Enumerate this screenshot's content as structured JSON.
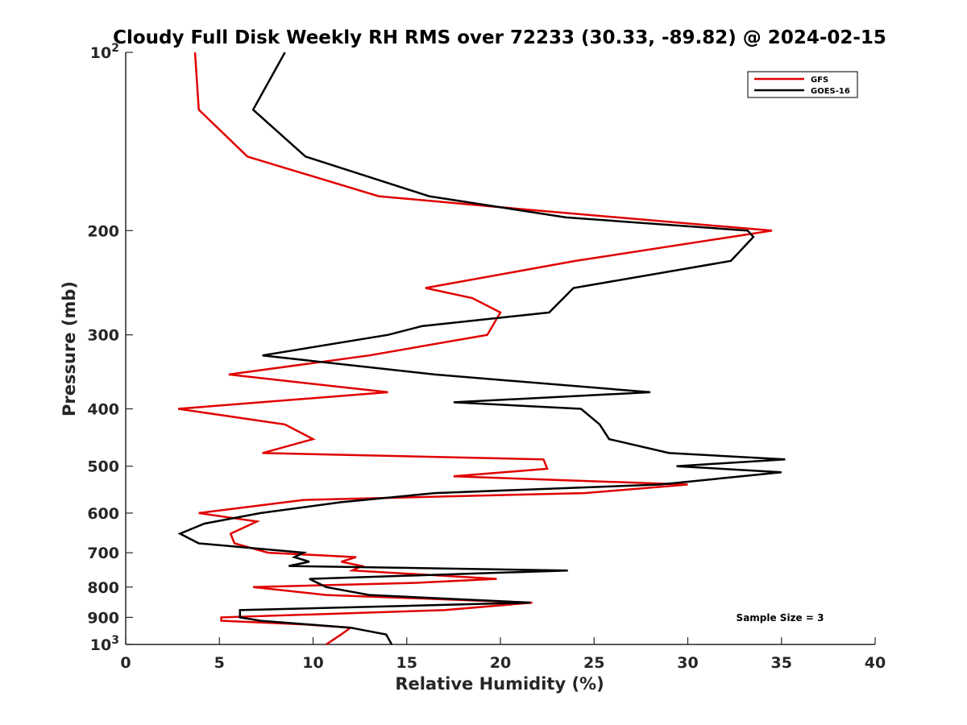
{
  "chart_data": {
    "type": "line",
    "title": "Cloudy Full Disk Weekly RH RMS over 72233 (30.33, -89.82) @ 2024-02-15",
    "xlabel": "Relative Humidity (%)",
    "ylabel": "Pressure (mb)",
    "xlim": [
      0,
      40
    ],
    "ylim": [
      100,
      1000
    ],
    "yscale": "log",
    "y_reversed": true,
    "xticks": [
      0,
      5,
      10,
      15,
      20,
      25,
      30,
      35,
      40
    ],
    "xtick_labels": [
      "0",
      "5",
      "10",
      "15",
      "20",
      "25",
      "30",
      "35",
      "40"
    ],
    "yticks": [
      100,
      200,
      300,
      400,
      500,
      600,
      700,
      800,
      900,
      1000
    ],
    "ytick_labels": [
      "10^2",
      "200",
      "300",
      "400",
      "500",
      "600",
      "700",
      "800",
      "900",
      "10^3"
    ],
    "grid": false,
    "legend_position": "top-right",
    "annotation": "Sample Size = 3",
    "series": [
      {
        "name": "GFS",
        "color": "#e00000",
        "points": [
          [
            3.7,
            100
          ],
          [
            3.9,
            125
          ],
          [
            6.5,
            150
          ],
          [
            13.5,
            175
          ],
          [
            22,
            185
          ],
          [
            34.5,
            200
          ],
          [
            24,
            225
          ],
          [
            16,
            250
          ],
          [
            18.5,
            260
          ],
          [
            20,
            275
          ],
          [
            19.3,
            300
          ],
          [
            13,
            325
          ],
          [
            5.5,
            350
          ],
          [
            14,
            375
          ],
          [
            2.8,
            400
          ],
          [
            8.5,
            425
          ],
          [
            10,
            450
          ],
          [
            7.3,
            475
          ],
          [
            22.3,
            487
          ],
          [
            22.5,
            505
          ],
          [
            17.5,
            520
          ],
          [
            30,
            537
          ],
          [
            24.5,
            555
          ],
          [
            9.5,
            570
          ],
          [
            3.9,
            600
          ],
          [
            7,
            620
          ],
          [
            5.6,
            650
          ],
          [
            5.8,
            675
          ],
          [
            7.6,
            700
          ],
          [
            12.3,
            712
          ],
          [
            11.5,
            725
          ],
          [
            12.6,
            737
          ],
          [
            12.1,
            750
          ],
          [
            19.8,
            775
          ],
          [
            15.5,
            787
          ],
          [
            6.8,
            800
          ],
          [
            10.7,
            825
          ],
          [
            21.7,
            850
          ],
          [
            17,
            875
          ],
          [
            5.1,
            900
          ],
          [
            5.1,
            912
          ],
          [
            9.5,
            925
          ],
          [
            12,
            937
          ],
          [
            11.5,
            962
          ],
          [
            10.7,
            1000
          ]
        ]
      },
      {
        "name": "GOES-16",
        "color": "#000000",
        "points": [
          [
            8.5,
            100
          ],
          [
            6.8,
            125
          ],
          [
            9.6,
            150
          ],
          [
            16.2,
            175
          ],
          [
            23.5,
            190
          ],
          [
            33.2,
            200
          ],
          [
            33.5,
            205
          ],
          [
            32.3,
            225
          ],
          [
            23.9,
            250
          ],
          [
            22.6,
            275
          ],
          [
            15.8,
            290
          ],
          [
            14,
            300
          ],
          [
            7.3,
            325
          ],
          [
            16.5,
            350
          ],
          [
            28,
            375
          ],
          [
            17.5,
            390
          ],
          [
            24.3,
            400
          ],
          [
            25.3,
            425
          ],
          [
            25.8,
            450
          ],
          [
            29,
            475
          ],
          [
            35.2,
            487
          ],
          [
            29.4,
            500
          ],
          [
            35,
            512
          ],
          [
            28.5,
            537
          ],
          [
            16.5,
            555
          ],
          [
            11.5,
            575
          ],
          [
            7.2,
            600
          ],
          [
            4.2,
            625
          ],
          [
            2.9,
            650
          ],
          [
            3.9,
            675
          ],
          [
            9.5,
            700
          ],
          [
            9,
            712
          ],
          [
            9.8,
            725
          ],
          [
            8.7,
            737
          ],
          [
            23.6,
            750
          ],
          [
            9.8,
            775
          ],
          [
            10.7,
            800
          ],
          [
            13,
            825
          ],
          [
            21.6,
            850
          ],
          [
            6.1,
            875
          ],
          [
            6.1,
            900
          ],
          [
            7.2,
            912
          ],
          [
            12,
            937
          ],
          [
            13.9,
            962
          ],
          [
            14.2,
            1000
          ]
        ]
      }
    ]
  }
}
